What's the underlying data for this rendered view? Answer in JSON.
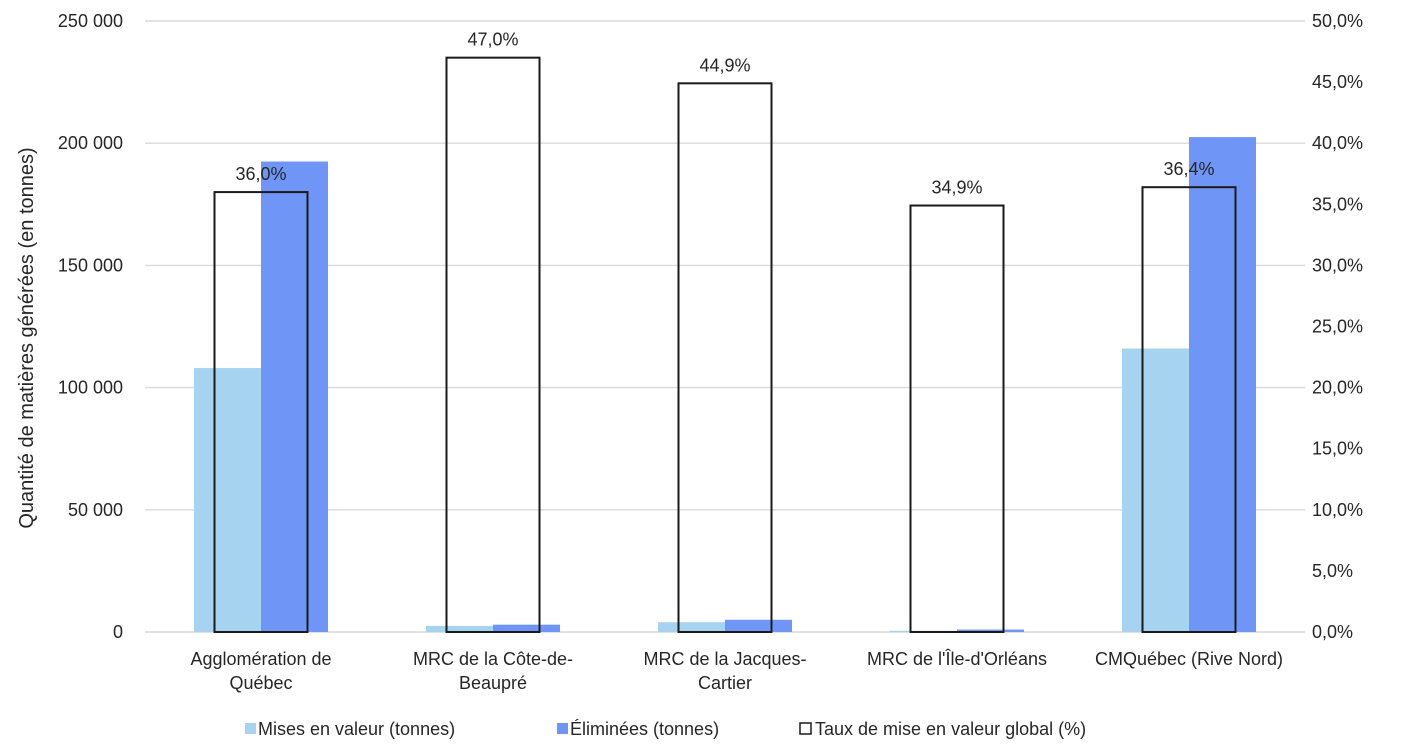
{
  "chart_data": {
    "type": "bar",
    "categories": [
      [
        "Agglomération de",
        "Québec"
      ],
      [
        "MRC de la Côte-de-",
        "Beaupré"
      ],
      [
        "MRC de la Jacques-",
        "Cartier"
      ],
      [
        "MRC de l'Île-d'Orléans"
      ],
      [
        "CMQuébec (Rive Nord)"
      ]
    ],
    "series": [
      {
        "name": "Mises en valeur (tonnes)",
        "axis": "left",
        "color": "#a6d3f0",
        "values": [
          108000,
          2500,
          4000,
          500,
          116000
        ]
      },
      {
        "name": "Éliminées (tonnes)",
        "axis": "left",
        "color": "#6f96f7",
        "values": [
          192500,
          3000,
          5000,
          1000,
          202500
        ]
      },
      {
        "name": "Taux de mise en valeur global (%)",
        "axis": "right",
        "style": "outline",
        "color": "#1a1a1a",
        "values": [
          36.0,
          47.0,
          44.9,
          34.9,
          36.4
        ],
        "labels": [
          "36,0%",
          "47,0%",
          "44,9%",
          "34,9%",
          "36,4%"
        ]
      }
    ],
    "ylabel": "Quantité de matières générées (en tonnes)",
    "ylim": [
      0,
      250000
    ],
    "yticks": [
      "0",
      "50 000",
      "100 000",
      "150 000",
      "200 000",
      "250 000"
    ],
    "y2lim": [
      0,
      50
    ],
    "y2ticks": [
      "0,0%",
      "5,0%",
      "10,0%",
      "15,0%",
      "20,0%",
      "25,0%",
      "30,0%",
      "35,0%",
      "40,0%",
      "45,0%",
      "50,0%"
    ],
    "grid": true,
    "legend": "bottom"
  }
}
